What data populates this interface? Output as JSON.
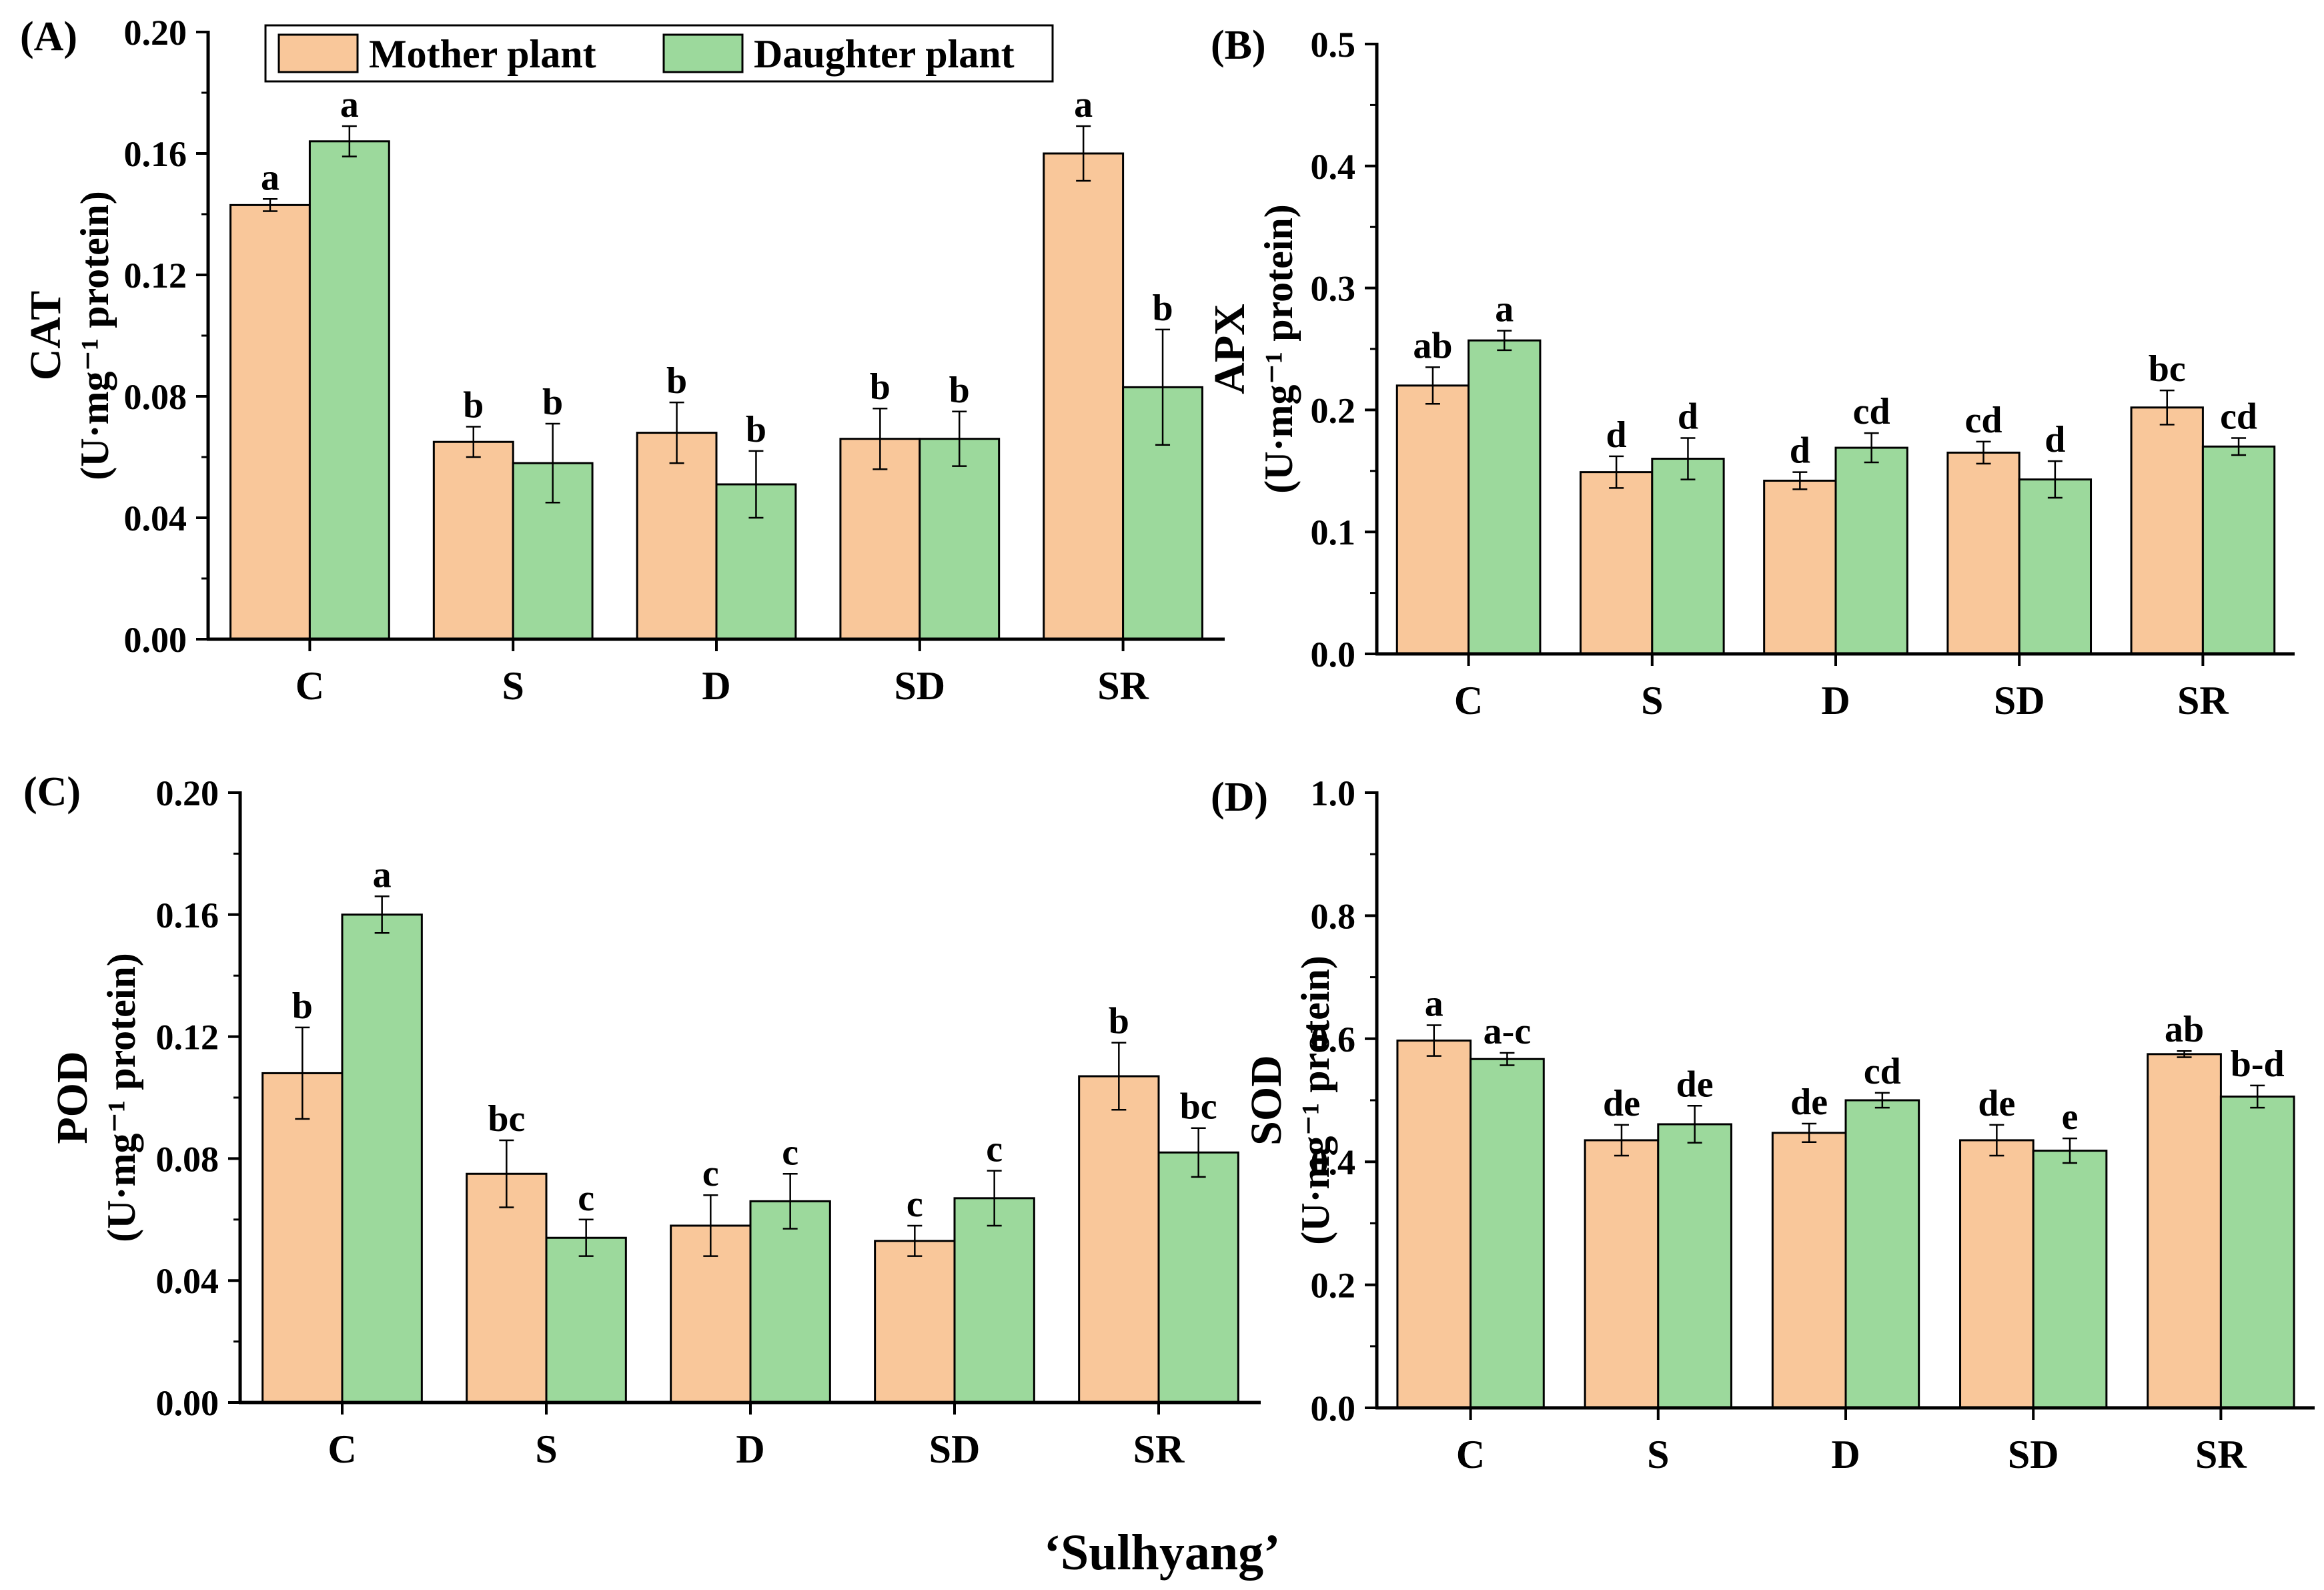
{
  "figure": {
    "xlabel": "‘Sulhyang’"
  },
  "legend": {
    "position": "top",
    "entries": [
      "Mother plant",
      "Daughter plant"
    ]
  },
  "colors": {
    "mother": "#F9C79A",
    "daughter": "#9CD99C",
    "axis": "#000000"
  },
  "chart_data": [
    {
      "panel": "(A)",
      "type": "bar",
      "categories": [
        "C",
        "S",
        "D",
        "SD",
        "SR"
      ],
      "ylabel_top": "CAT",
      "ylabel_bottom": "(U·mg⁻¹ protein)",
      "ylim": [
        0,
        0.2
      ],
      "yticks": [
        0,
        0.04,
        0.08,
        0.12,
        0.16,
        0.2
      ],
      "ytick_labels": [
        "0.00",
        "0.04",
        "0.08",
        "0.12",
        "0.16",
        "0.20"
      ],
      "series": [
        {
          "name": "Mother plant",
          "values": [
            0.143,
            0.065,
            0.068,
            0.066,
            0.16
          ],
          "errors": [
            0.002,
            0.005,
            0.01,
            0.01,
            0.009
          ],
          "letters": [
            "a",
            "b",
            "b",
            "b",
            "a"
          ]
        },
        {
          "name": "Daughter plant",
          "values": [
            0.164,
            0.058,
            0.051,
            0.066,
            0.083
          ],
          "errors": [
            0.005,
            0.013,
            0.011,
            0.009,
            0.019
          ],
          "letters": [
            "a",
            "b",
            "b",
            "b",
            "b"
          ]
        }
      ]
    },
    {
      "panel": "(B)",
      "type": "bar",
      "categories": [
        "C",
        "S",
        "D",
        "SD",
        "SR"
      ],
      "ylabel_top": "APX",
      "ylabel_bottom": "(U·mg⁻¹ protein)",
      "ylim": [
        0,
        0.5
      ],
      "yticks": [
        0,
        0.1,
        0.2,
        0.3,
        0.4,
        0.5
      ],
      "ytick_labels": [
        "0.0",
        "0.1",
        "0.2",
        "0.3",
        "0.4",
        "0.5"
      ],
      "series": [
        {
          "name": "Mother plant",
          "values": [
            0.22,
            0.149,
            0.142,
            0.165,
            0.202
          ],
          "errors": [
            0.015,
            0.013,
            0.007,
            0.009,
            0.014
          ],
          "letters": [
            "ab",
            "d",
            "d",
            "cd",
            "bc"
          ]
        },
        {
          "name": "Daughter plant",
          "values": [
            0.257,
            0.16,
            0.169,
            0.143,
            0.17
          ],
          "errors": [
            0.008,
            0.017,
            0.012,
            0.015,
            0.007
          ],
          "letters": [
            "a",
            "d",
            "cd",
            "d",
            "cd"
          ]
        }
      ]
    },
    {
      "panel": "(C)",
      "type": "bar",
      "categories": [
        "C",
        "S",
        "D",
        "SD",
        "SR"
      ],
      "ylabel_top": "POD",
      "ylabel_bottom": "(U·mg⁻¹ protein)",
      "ylim": [
        0,
        0.2
      ],
      "yticks": [
        0,
        0.04,
        0.08,
        0.12,
        0.16,
        0.2
      ],
      "ytick_labels": [
        "0.00",
        "0.04",
        "0.08",
        "0.12",
        "0.16",
        "0.20"
      ],
      "series": [
        {
          "name": "Mother plant",
          "values": [
            0.108,
            0.075,
            0.058,
            0.053,
            0.107
          ],
          "errors": [
            0.015,
            0.011,
            0.01,
            0.005,
            0.011
          ],
          "letters": [
            "b",
            "bc",
            "c",
            "c",
            "b"
          ]
        },
        {
          "name": "Daughter plant",
          "values": [
            0.16,
            0.054,
            0.066,
            0.067,
            0.082
          ],
          "errors": [
            0.006,
            0.006,
            0.009,
            0.009,
            0.008
          ],
          "letters": [
            "a",
            "c",
            "c",
            "c",
            "bc"
          ]
        }
      ]
    },
    {
      "panel": "(D)",
      "type": "bar",
      "categories": [
        "C",
        "S",
        "D",
        "SD",
        "SR"
      ],
      "ylabel_top": "SOD",
      "ylabel_bottom": "(U·mg⁻¹ protein)",
      "ylim": [
        0,
        1.0
      ],
      "yticks": [
        0,
        0.2,
        0.4,
        0.6,
        0.8,
        1.0
      ],
      "ytick_labels": [
        "0.0",
        "0.2",
        "0.4",
        "0.6",
        "0.8",
        "1.0"
      ],
      "series": [
        {
          "name": "Mother plant",
          "values": [
            0.597,
            0.435,
            0.447,
            0.435,
            0.575
          ],
          "errors": [
            0.025,
            0.025,
            0.015,
            0.025,
            0.005
          ],
          "letters": [
            "a",
            "de",
            "de",
            "de",
            "ab"
          ]
        },
        {
          "name": "Daughter plant",
          "values": [
            0.567,
            0.461,
            0.5,
            0.418,
            0.506
          ],
          "errors": [
            0.01,
            0.03,
            0.012,
            0.02,
            0.018
          ],
          "letters": [
            "a-c",
            "de",
            "cd",
            "e",
            "b-d"
          ]
        }
      ]
    }
  ]
}
